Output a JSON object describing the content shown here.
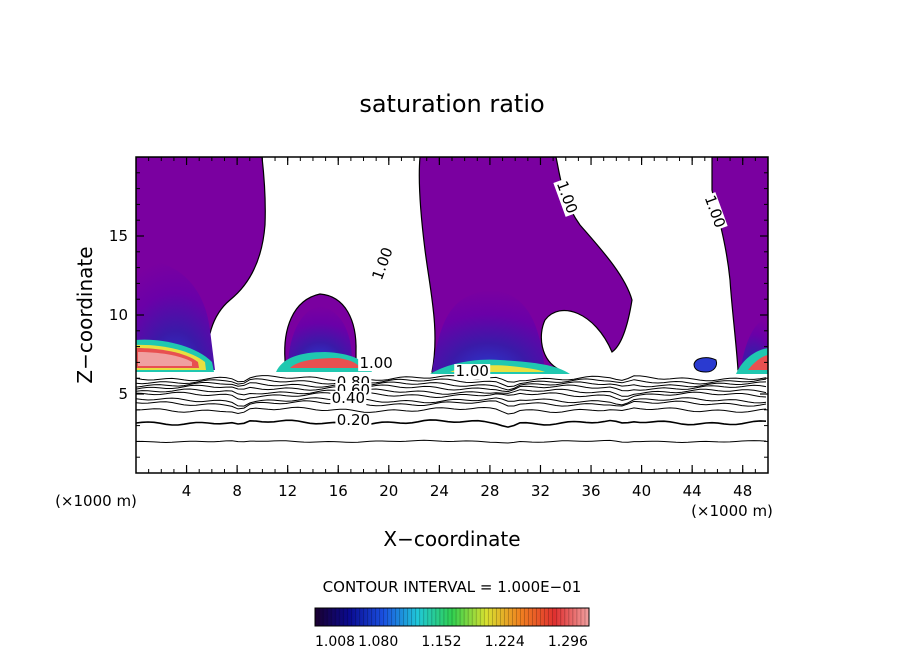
{
  "chart_data": {
    "type": "heatmap",
    "title": "saturation ratio",
    "xlabel": "X−coordinate",
    "ylabel": "Z−coordinate",
    "x_unit_left": "(×1000 m)",
    "x_unit_right": "(×1000 m)",
    "xlim": [
      0,
      50
    ],
    "ylim": [
      0,
      20
    ],
    "x_ticks": [
      4,
      8,
      12,
      16,
      20,
      24,
      28,
      32,
      36,
      40,
      44,
      48
    ],
    "y_ticks": [
      5,
      10,
      15
    ],
    "contour_interval_text": "CONTOUR INTERVAL = 1.000E−01",
    "contour_labels": [
      {
        "text": "1.00",
        "x": 19.5,
        "y": 13.0
      },
      {
        "text": "1.00",
        "x": 34.1,
        "y": 17.2
      },
      {
        "text": "1.00",
        "x": 45.8,
        "y": 16.3
      },
      {
        "text": "1.00",
        "x": 19.0,
        "y": 6.7
      },
      {
        "text": "1.00",
        "x": 26.6,
        "y": 6.2
      },
      {
        "text": "0.80",
        "x": 17.2,
        "y": 5.5
      },
      {
        "text": "0.60",
        "x": 17.2,
        "y": 5.0
      },
      {
        "text": "0.40",
        "x": 16.8,
        "y": 4.5
      },
      {
        "text": "0.20",
        "x": 17.2,
        "y": 3.1
      }
    ],
    "contour_levels_below_cloud": [
      6.0,
      5.8,
      5.6,
      5.4,
      5.15,
      4.95,
      4.6,
      4.4,
      4.0,
      3.2,
      2.0
    ],
    "colorbar": {
      "tick_labels": [
        "1.008",
        "1.080",
        "1.152",
        "1.224",
        "1.296"
      ],
      "tick_values": [
        1.008,
        1.08,
        1.152,
        1.224,
        1.296
      ],
      "range": [
        1.008,
        1.32
      ],
      "colors": [
        "#1a0030",
        "#0a0a90",
        "#1a50e0",
        "#20c8d8",
        "#30d050",
        "#d8e030",
        "#f08020",
        "#e03030",
        "#f0a0a0"
      ]
    },
    "cloud_color": "#7a00a0",
    "grid": false,
    "legend": "bottom-center colorbar"
  }
}
